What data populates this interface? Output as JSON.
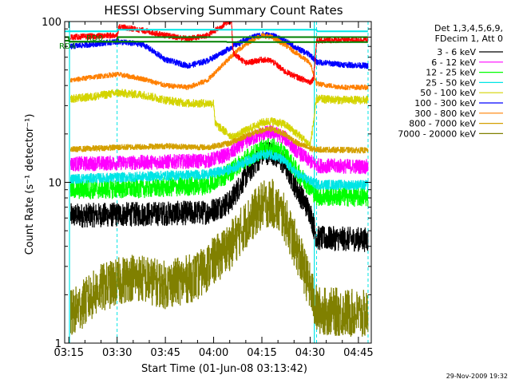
{
  "chart_data": {
    "type": "line",
    "title": "HESSI Observing Summary Count Rates",
    "xlabel": "Start Time (01-Jun-08 03:13:42)",
    "ylabel": "Count Rate (s⁻¹ detector⁻¹)",
    "x_ticks": [
      "03:15",
      "03:30",
      "03:45",
      "04:00",
      "04:15",
      "04:30",
      "04:45"
    ],
    "x_tick_minutes": [
      15,
      30,
      45,
      60,
      75,
      90,
      105
    ],
    "xlim_minutes": [
      13.7,
      109
    ],
    "y_ticks": [
      "1",
      "10",
      "100"
    ],
    "y_tick_values": [
      1,
      10,
      100
    ],
    "ylim": [
      1,
      100
    ],
    "yscale": "log",
    "grid": false,
    "legend_position": "top-right",
    "legend_header": [
      "Det 1,3,4,5,6,9,",
      "FDecim 1, Att 0"
    ],
    "timestamp": "29-Nov-2009 19:32",
    "annotations": [
      {
        "text": "RD0",
        "color": "#008000"
      },
      {
        "text": "RD4",
        "color": "#008000"
      }
    ],
    "vertical_markers": {
      "solid_minutes": [
        15.2,
        91.3
      ],
      "dashed_minutes": [
        30,
        92,
        108
      ],
      "color": "#00e5e5"
    },
    "night_segments_minutes": [
      [
        13.7,
        15.2
      ],
      [
        91.3,
        92.0
      ],
      [
        108.3,
        109
      ]
    ],
    "series": [
      {
        "name": "3 - 6 keV",
        "color": "#000000",
        "noise": 0.15,
        "points": [
          [
            15.5,
            6.2
          ],
          [
            30,
            6.3
          ],
          [
            45,
            6.4
          ],
          [
            58,
            6.5
          ],
          [
            65,
            7.5
          ],
          [
            70,
            11
          ],
          [
            75,
            15
          ],
          [
            78,
            15.5
          ],
          [
            82,
            13
          ],
          [
            86,
            9
          ],
          [
            90,
            6.5
          ],
          [
            92,
            4.5
          ],
          [
            108,
            4.4
          ]
        ]
      },
      {
        "name": "6 - 12 keV",
        "color": "#ff00ff",
        "noise": 0.09,
        "points": [
          [
            15.5,
            13
          ],
          [
            30,
            13.2
          ],
          [
            45,
            13.4
          ],
          [
            58,
            13.6
          ],
          [
            65,
            15
          ],
          [
            70,
            18
          ],
          [
            75,
            20
          ],
          [
            78,
            20.5
          ],
          [
            82,
            19
          ],
          [
            86,
            15.5
          ],
          [
            90,
            13.5
          ],
          [
            92,
            12.7
          ],
          [
            108,
            12.5
          ]
        ]
      },
      {
        "name": "12 - 25 keV",
        "color": "#00ff00",
        "noise": 0.12,
        "points": [
          [
            15.5,
            9
          ],
          [
            30,
            9.1
          ],
          [
            45,
            9.3
          ],
          [
            58,
            9.6
          ],
          [
            65,
            11.5
          ],
          [
            70,
            14
          ],
          [
            75,
            16
          ],
          [
            78,
            16.5
          ],
          [
            82,
            15
          ],
          [
            86,
            11.5
          ],
          [
            90,
            9.3
          ],
          [
            92,
            8.2
          ],
          [
            108,
            8.1
          ]
        ]
      },
      {
        "name": "25 - 50 keV",
        "color": "#00e5e5",
        "noise": 0.06,
        "points": [
          [
            15.5,
            10.5
          ],
          [
            30,
            10.7
          ],
          [
            45,
            11
          ],
          [
            58,
            11.2
          ],
          [
            65,
            12
          ],
          [
            70,
            13.5
          ],
          [
            75,
            14.8
          ],
          [
            78,
            15
          ],
          [
            82,
            13.5
          ],
          [
            86,
            11.2
          ],
          [
            90,
            10.2
          ],
          [
            92,
            9.7
          ],
          [
            108,
            9.6
          ]
        ]
      },
      {
        "name": "50 - 100 keV",
        "color": "#d4d400",
        "noise": 0.05,
        "points": [
          [
            15.5,
            33
          ],
          [
            22,
            34
          ],
          [
            30,
            36
          ],
          [
            38,
            35
          ],
          [
            45,
            32.5
          ],
          [
            52,
            31
          ],
          [
            58,
            31
          ],
          [
            60,
            31
          ],
          [
            60.5,
            23
          ],
          [
            66,
            19
          ],
          [
            70,
            21
          ],
          [
            75,
            23.5
          ],
          [
            78,
            24
          ],
          [
            82,
            23
          ],
          [
            86,
            20
          ],
          [
            90,
            17
          ],
          [
            92,
            33
          ],
          [
            100,
            32.5
          ],
          [
            108,
            32.5
          ]
        ]
      },
      {
        "name": "100 - 300 keV",
        "color": "#0000ff",
        "noise": 0.035,
        "points": [
          [
            15.5,
            70
          ],
          [
            30,
            75
          ],
          [
            38,
            72
          ],
          [
            45,
            58
          ],
          [
            52,
            53
          ],
          [
            58,
            57
          ],
          [
            62,
            63
          ],
          [
            67,
            72
          ],
          [
            72,
            80
          ],
          [
            75,
            83
          ],
          [
            78,
            82
          ],
          [
            82,
            76
          ],
          [
            86,
            68
          ],
          [
            90,
            62
          ],
          [
            92,
            56
          ],
          [
            100,
            54
          ],
          [
            108,
            53
          ]
        ]
      },
      {
        "name": "300 - 800 keV",
        "color": "#ff8000",
        "noise": 0.03,
        "points": [
          [
            15.5,
            43
          ],
          [
            22,
            45
          ],
          [
            30,
            47
          ],
          [
            38,
            44
          ],
          [
            45,
            40
          ],
          [
            52,
            39
          ],
          [
            58,
            43
          ],
          [
            62,
            52
          ],
          [
            67,
            65
          ],
          [
            72,
            77
          ],
          [
            75,
            82
          ],
          [
            78,
            80
          ],
          [
            82,
            72
          ],
          [
            86,
            63
          ],
          [
            90,
            55
          ],
          [
            92,
            41
          ],
          [
            100,
            39
          ],
          [
            108,
            39
          ]
        ]
      },
      {
        "name": "800 - 7000 keV",
        "color": "#d4a000",
        "noise": 0.035,
        "points": [
          [
            15.5,
            16
          ],
          [
            30,
            16.5
          ],
          [
            45,
            16.8
          ],
          [
            58,
            16.5
          ],
          [
            65,
            17.5
          ],
          [
            70,
            19.5
          ],
          [
            75,
            21
          ],
          [
            78,
            21.5
          ],
          [
            82,
            20
          ],
          [
            86,
            17.5
          ],
          [
            90,
            16.2
          ],
          [
            92,
            16
          ],
          [
            108,
            15.8
          ]
        ]
      },
      {
        "name": "7000 - 20000 keV",
        "color": "#808000",
        "noise": 0.3,
        "points": [
          [
            15.5,
            1.5
          ],
          [
            25,
            2.2
          ],
          [
            35,
            2.6
          ],
          [
            45,
            2.3
          ],
          [
            55,
            2.6
          ],
          [
            65,
            4.0
          ],
          [
            70,
            5.5
          ],
          [
            75,
            7.2
          ],
          [
            78,
            7.5
          ],
          [
            82,
            6.0
          ],
          [
            86,
            3.8
          ],
          [
            90,
            2.2
          ],
          [
            92,
            1.6
          ],
          [
            108,
            1.5
          ]
        ]
      }
    ],
    "overlays": [
      {
        "color": "#ff0000",
        "noise": 0.035,
        "points": [
          [
            15.5,
            80
          ],
          [
            30,
            82
          ],
          [
            30.5,
            93
          ],
          [
            38,
            88
          ],
          [
            45,
            82
          ],
          [
            52,
            78
          ],
          [
            58,
            82
          ],
          [
            62,
            92
          ],
          [
            64,
            99
          ],
          [
            65.5,
            100
          ],
          [
            66,
            64
          ],
          [
            70,
            55
          ],
          [
            75,
            58
          ],
          [
            78,
            57
          ],
          [
            82,
            49
          ],
          [
            86,
            45
          ],
          [
            90,
            42
          ],
          [
            91,
            44
          ],
          [
            92,
            76
          ],
          [
            100,
            77
          ],
          [
            108,
            77
          ]
        ]
      },
      {
        "color": "#008000",
        "noise": 0,
        "points": [
          [
            13.7,
            80
          ],
          [
            15,
            80
          ],
          [
            15,
            75
          ],
          [
            30,
            75
          ],
          [
            30,
            80
          ],
          [
            108,
            80
          ]
        ]
      },
      {
        "color": "#008000",
        "noise": 0,
        "points": [
          [
            13.7,
            76
          ],
          [
            15,
            76
          ],
          [
            15,
            75
          ],
          [
            30,
            75
          ],
          [
            30,
            75
          ],
          [
            64,
            75
          ],
          [
            64,
            74.5
          ],
          [
            108,
            74.5
          ]
        ]
      },
      {
        "color": "#00e5e5",
        "noise": 0,
        "points": [
          [
            13.7,
            87
          ],
          [
            30,
            87
          ],
          [
            30,
            89
          ],
          [
            91.3,
            89
          ],
          [
            92,
            89
          ],
          [
            92,
            87
          ],
          [
            108,
            87
          ]
        ]
      }
    ]
  }
}
